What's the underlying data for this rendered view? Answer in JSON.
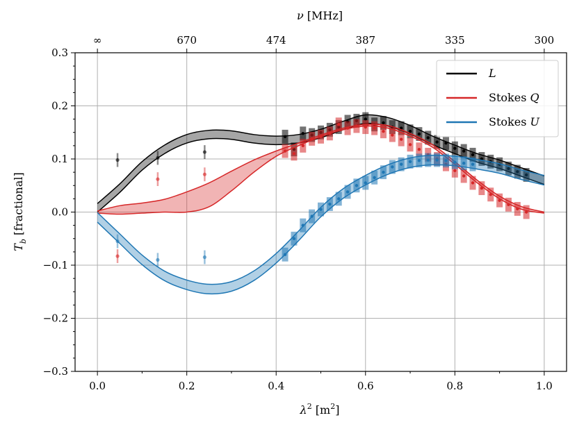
{
  "chart_data": {
    "type": "line",
    "title": "",
    "xlabel": "λ² [m²]",
    "ylabel": "T_b [fractional]",
    "top_xlabel": "ν [MHz]",
    "xlim": [
      -0.05,
      1.05
    ],
    "ylim": [
      -0.3,
      0.3
    ],
    "grid": true,
    "x_ticks": [
      0.0,
      0.2,
      0.4,
      0.6,
      0.8,
      1.0
    ],
    "x_tick_labels": [
      "0.0",
      "0.2",
      "0.4",
      "0.6",
      "0.8",
      "1.0"
    ],
    "y_ticks": [
      -0.3,
      -0.2,
      -0.1,
      0.0,
      0.1,
      0.2,
      0.3
    ],
    "y_tick_labels": [
      "−0.3",
      "−0.2",
      "−0.1",
      "0.0",
      "0.1",
      "0.2",
      "0.3"
    ],
    "top_ticks": [
      0.0,
      0.2,
      0.4,
      0.6,
      0.8,
      1.0
    ],
    "top_tick_labels": [
      "∞",
      "670",
      "474",
      "387",
      "335",
      "300"
    ],
    "legend_position": "top-right",
    "series": [
      {
        "name": "L",
        "color": "#000000",
        "model_x": [
          0.0,
          0.05,
          0.1,
          0.15,
          0.2,
          0.25,
          0.3,
          0.35,
          0.4,
          0.45,
          0.5,
          0.55,
          0.6,
          0.65,
          0.7,
          0.75,
          0.8,
          0.85,
          0.9,
          0.95,
          1.0
        ],
        "model_y": [
          0.008,
          0.045,
          0.087,
          0.118,
          0.138,
          0.146,
          0.145,
          0.138,
          0.135,
          0.138,
          0.148,
          0.163,
          0.175,
          0.17,
          0.155,
          0.135,
          0.118,
          0.102,
          0.09,
          0.075,
          0.06
        ],
        "band_halfwidth": 0.008,
        "data_x": [
          0.42,
          0.44,
          0.46,
          0.48,
          0.5,
          0.52,
          0.54,
          0.56,
          0.58,
          0.6,
          0.62,
          0.64,
          0.66,
          0.68,
          0.7,
          0.72,
          0.74,
          0.76,
          0.78,
          0.8,
          0.82,
          0.84,
          0.86,
          0.88,
          0.9,
          0.92,
          0.94,
          0.96
        ],
        "data_y": [
          0.142,
          0.118,
          0.148,
          0.145,
          0.15,
          0.155,
          0.16,
          0.17,
          0.172,
          0.175,
          0.165,
          0.168,
          0.16,
          0.158,
          0.152,
          0.147,
          0.14,
          0.132,
          0.13,
          0.12,
          0.115,
          0.108,
          0.1,
          0.095,
          0.09,
          0.082,
          0.076,
          0.07
        ],
        "data_err": 0.013,
        "point_x": [
          0.045,
          0.135,
          0.24
        ],
        "point_y": [
          0.098,
          0.102,
          0.113
        ],
        "point_err": 0.013
      },
      {
        "name": "Stokes Q",
        "color": "#d62728",
        "model_x": [
          0.0,
          0.05,
          0.1,
          0.15,
          0.2,
          0.25,
          0.3,
          0.35,
          0.4,
          0.45,
          0.5,
          0.55,
          0.6,
          0.65,
          0.7,
          0.75,
          0.8,
          0.85,
          0.9,
          0.95,
          1.0
        ],
        "model_upper": [
          0.002,
          0.012,
          0.017,
          0.024,
          0.038,
          0.055,
          0.077,
          0.098,
          0.115,
          0.13,
          0.145,
          0.158,
          0.165,
          0.163,
          0.148,
          0.127,
          0.095,
          0.06,
          0.03,
          0.01,
          0.0
        ],
        "model_lower": [
          -0.002,
          -0.004,
          -0.002,
          0.0,
          0.0,
          0.01,
          0.04,
          0.075,
          0.105,
          0.125,
          0.142,
          0.155,
          0.162,
          0.158,
          0.143,
          0.122,
          0.09,
          0.055,
          0.025,
          0.005,
          -0.002
        ],
        "data_x": [
          0.42,
          0.44,
          0.46,
          0.48,
          0.5,
          0.52,
          0.54,
          0.56,
          0.58,
          0.6,
          0.62,
          0.64,
          0.66,
          0.68,
          0.7,
          0.72,
          0.74,
          0.76,
          0.78,
          0.8,
          0.82,
          0.84,
          0.86,
          0.88,
          0.9,
          0.92,
          0.94,
          0.96
        ],
        "data_y": [
          0.115,
          0.11,
          0.125,
          0.138,
          0.142,
          0.148,
          0.165,
          0.158,
          0.162,
          0.16,
          0.158,
          0.152,
          0.145,
          0.137,
          0.127,
          0.118,
          0.108,
          0.1,
          0.09,
          0.078,
          0.068,
          0.055,
          0.045,
          0.033,
          0.022,
          0.014,
          0.006,
          0.0
        ],
        "data_err": 0.013,
        "point_x": [
          0.045,
          0.135,
          0.24
        ],
        "point_y": [
          -0.083,
          0.062,
          0.071
        ],
        "point_err": 0.013
      },
      {
        "name": "Stokes U",
        "color": "#1f77b4",
        "model_x": [
          0.0,
          0.05,
          0.1,
          0.15,
          0.2,
          0.25,
          0.3,
          0.35,
          0.4,
          0.45,
          0.5,
          0.55,
          0.6,
          0.65,
          0.7,
          0.75,
          0.8,
          0.85,
          0.9,
          0.95,
          1.0
        ],
        "model_y": [
          -0.01,
          -0.05,
          -0.09,
          -0.12,
          -0.137,
          -0.145,
          -0.14,
          -0.12,
          -0.087,
          -0.045,
          0.0,
          0.035,
          0.06,
          0.08,
          0.093,
          0.098,
          0.096,
          0.09,
          0.082,
          0.07,
          0.06
        ],
        "band_halfwidth": 0.009,
        "data_x": [
          0.42,
          0.44,
          0.46,
          0.48,
          0.5,
          0.52,
          0.54,
          0.56,
          0.58,
          0.6,
          0.62,
          0.64,
          0.66,
          0.68,
          0.7,
          0.72,
          0.74,
          0.76,
          0.78,
          0.8,
          0.82,
          0.84
        ],
        "data_y": [
          -0.08,
          -0.05,
          -0.025,
          -0.008,
          0.005,
          0.015,
          0.025,
          0.038,
          0.05,
          0.055,
          0.065,
          0.075,
          0.085,
          0.09,
          0.095,
          0.097,
          0.098,
          0.098,
          0.097,
          0.094,
          0.092,
          0.09
        ],
        "data_err": 0.013,
        "point_x": [
          0.045,
          0.135,
          0.24
        ],
        "point_y": [
          -0.055,
          -0.09,
          -0.085
        ],
        "point_err": 0.013
      }
    ]
  }
}
